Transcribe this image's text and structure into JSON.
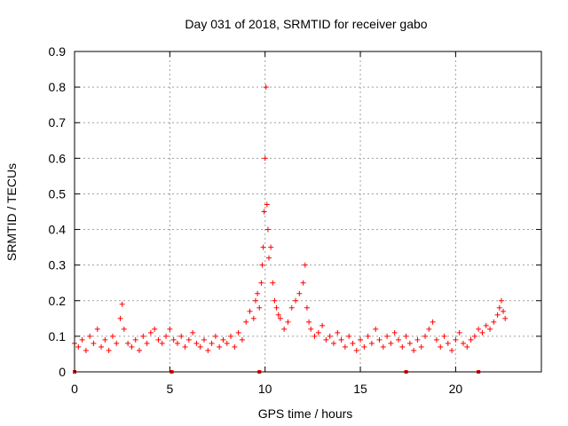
{
  "chart_data": {
    "type": "scatter",
    "title": "Day 031 of 2018, SRMTID for receiver gabo",
    "xlabel": "GPS time / hours",
    "ylabel": "SRMTID / TECUs",
    "xlim": [
      0,
      24.5
    ],
    "ylim": [
      0,
      0.9
    ],
    "xticks": [
      0,
      5,
      10,
      15,
      20
    ],
    "xtick_labels": [
      "0",
      "5",
      "10",
      "15",
      "20"
    ],
    "yticks": [
      0,
      0.1,
      0.2,
      0.3,
      0.4,
      0.5,
      0.6,
      0.7,
      0.8,
      0.9
    ],
    "ytick_labels": [
      "0",
      "0.1",
      "0.2",
      "0.3",
      "0.4",
      "0.5",
      "0.6",
      "0.7",
      "0.8",
      "0.9"
    ],
    "grid": true,
    "marker": "plus",
    "color": "#ff0000",
    "gap_markers_x": [
      0.0,
      5.1,
      9.7,
      17.4,
      21.2
    ],
    "series": [
      {
        "name": "SRMTID",
        "x": [
          0.0,
          0.2,
          0.4,
          0.6,
          0.8,
          1.0,
          1.2,
          1.4,
          1.6,
          1.8,
          2.0,
          2.2,
          2.4,
          2.5,
          2.6,
          2.8,
          3.0,
          3.2,
          3.4,
          3.6,
          3.8,
          4.0,
          4.2,
          4.4,
          4.6,
          4.8,
          5.0,
          5.2,
          5.4,
          5.6,
          5.8,
          6.0,
          6.2,
          6.4,
          6.6,
          6.8,
          7.0,
          7.2,
          7.4,
          7.6,
          7.8,
          8.0,
          8.2,
          8.4,
          8.6,
          8.8,
          9.0,
          9.2,
          9.4,
          9.5,
          9.6,
          9.7,
          9.8,
          9.85,
          9.9,
          9.95,
          10.0,
          10.05,
          10.1,
          10.15,
          10.2,
          10.3,
          10.4,
          10.5,
          10.6,
          10.7,
          10.8,
          11.0,
          11.2,
          11.4,
          11.6,
          11.8,
          12.0,
          12.1,
          12.2,
          12.3,
          12.4,
          12.6,
          12.8,
          13.0,
          13.2,
          13.4,
          13.6,
          13.8,
          14.0,
          14.2,
          14.4,
          14.6,
          14.8,
          15.0,
          15.2,
          15.4,
          15.6,
          15.8,
          16.0,
          16.2,
          16.4,
          16.6,
          16.8,
          17.0,
          17.2,
          17.4,
          17.6,
          17.8,
          18.0,
          18.2,
          18.4,
          18.6,
          18.8,
          19.0,
          19.2,
          19.4,
          19.6,
          19.8,
          20.0,
          20.2,
          20.4,
          20.6,
          20.8,
          21.0,
          21.2,
          21.4,
          21.6,
          21.8,
          22.0,
          22.2,
          22.3,
          22.4,
          22.5,
          22.6
        ],
        "y": [
          0.08,
          0.07,
          0.09,
          0.06,
          0.1,
          0.08,
          0.12,
          0.07,
          0.09,
          0.06,
          0.1,
          0.08,
          0.15,
          0.19,
          0.12,
          0.08,
          0.07,
          0.09,
          0.06,
          0.1,
          0.08,
          0.11,
          0.12,
          0.09,
          0.08,
          0.1,
          0.12,
          0.09,
          0.08,
          0.1,
          0.07,
          0.09,
          0.11,
          0.08,
          0.07,
          0.09,
          0.06,
          0.08,
          0.1,
          0.07,
          0.09,
          0.08,
          0.1,
          0.07,
          0.11,
          0.09,
          0.14,
          0.17,
          0.15,
          0.2,
          0.22,
          0.18,
          0.25,
          0.3,
          0.35,
          0.45,
          0.6,
          0.8,
          0.47,
          0.4,
          0.32,
          0.35,
          0.25,
          0.2,
          0.18,
          0.16,
          0.15,
          0.12,
          0.14,
          0.18,
          0.2,
          0.22,
          0.25,
          0.3,
          0.18,
          0.14,
          0.12,
          0.1,
          0.11,
          0.13,
          0.09,
          0.1,
          0.08,
          0.11,
          0.09,
          0.07,
          0.1,
          0.08,
          0.06,
          0.09,
          0.07,
          0.1,
          0.08,
          0.12,
          0.09,
          0.07,
          0.1,
          0.08,
          0.11,
          0.09,
          0.07,
          0.1,
          0.08,
          0.06,
          0.09,
          0.07,
          0.1,
          0.12,
          0.14,
          0.09,
          0.07,
          0.1,
          0.08,
          0.06,
          0.09,
          0.11,
          0.08,
          0.07,
          0.09,
          0.1,
          0.12,
          0.11,
          0.13,
          0.12,
          0.14,
          0.16,
          0.18,
          0.2,
          0.17,
          0.15
        ]
      }
    ]
  }
}
